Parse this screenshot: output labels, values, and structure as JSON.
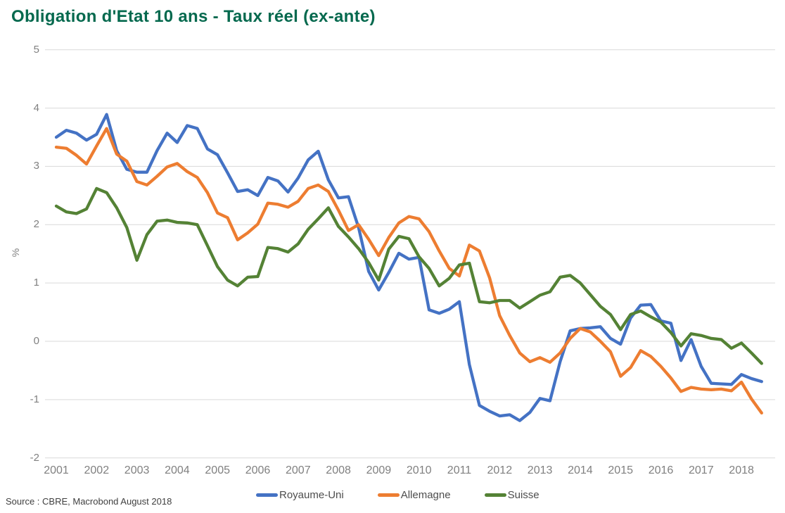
{
  "title": "Obligation d'Etat 10 ans - Taux réel (ex-ante)",
  "source": "Source : CBRE, Macrobond August 2018",
  "colors": {
    "title": "#05694e",
    "axis_text": "#808080",
    "gridline": "#d9d9d9",
    "background": "#ffffff"
  },
  "chart_data": {
    "type": "line",
    "title": "Obligation d'Etat 10 ans - Taux réel (ex-ante)",
    "xlabel": "",
    "ylabel": "%",
    "ylim": [
      -2,
      5
    ],
    "yticks": [
      5,
      4,
      3,
      2,
      1,
      0,
      -1,
      -2
    ],
    "grid": "horizontal",
    "legend_position": "bottom",
    "frequency": "quarterly",
    "x_start": "2001-Q1",
    "x_end": "2018-Q3",
    "x_tick_labels": [
      "2001",
      "2002",
      "2003",
      "2004",
      "2005",
      "2006",
      "2007",
      "2008",
      "2009",
      "2010",
      "2011",
      "2012",
      "2013",
      "2014",
      "2015",
      "2016",
      "2017",
      "2018"
    ],
    "series": [
      {
        "name": "Royaume-Uni",
        "color": "#4472C4",
        "values": [
          3.5,
          3.62,
          3.57,
          3.45,
          3.55,
          3.89,
          3.27,
          2.95,
          2.9,
          2.9,
          3.27,
          3.57,
          3.41,
          3.7,
          3.65,
          3.3,
          3.2,
          2.89,
          2.57,
          2.6,
          2.5,
          2.81,
          2.75,
          2.56,
          2.8,
          3.11,
          3.26,
          2.77,
          2.46,
          2.48,
          1.95,
          1.2,
          0.88,
          1.18,
          1.51,
          1.41,
          1.44,
          0.54,
          0.48,
          0.55,
          0.68,
          -0.4,
          -1.1,
          -1.2,
          -1.28,
          -1.26,
          -1.36,
          -1.22,
          -0.98,
          -1.02,
          -0.35,
          0.18,
          0.22,
          0.23,
          0.25,
          0.05,
          -0.05,
          0.4,
          0.62,
          0.63,
          0.35,
          0.31,
          -0.33,
          0.03,
          -0.43,
          -0.72,
          -0.73,
          -0.74,
          -0.57,
          -0.64,
          -0.69
        ]
      },
      {
        "name": "Allemagne",
        "color": "#ED7D31",
        "values": [
          3.33,
          3.31,
          3.19,
          3.04,
          3.35,
          3.65,
          3.21,
          3.09,
          2.74,
          2.68,
          2.83,
          2.99,
          3.05,
          2.91,
          2.81,
          2.55,
          2.2,
          2.12,
          1.74,
          1.86,
          2.01,
          2.37,
          2.35,
          2.3,
          2.4,
          2.62,
          2.68,
          2.57,
          2.25,
          1.9,
          2.0,
          1.75,
          1.47,
          1.78,
          2.03,
          2.14,
          2.1,
          1.88,
          1.55,
          1.25,
          1.12,
          1.65,
          1.55,
          1.09,
          0.44,
          0.1,
          -0.2,
          -0.35,
          -0.28,
          -0.36,
          -0.2,
          0.05,
          0.22,
          0.16,
          0.0,
          -0.18,
          -0.6,
          -0.45,
          -0.16,
          -0.26,
          -0.43,
          -0.63,
          -0.86,
          -0.79,
          -0.82,
          -0.83,
          -0.82,
          -0.85,
          -0.7,
          -0.99,
          -1.23
        ]
      },
      {
        "name": "Suisse",
        "color": "#548235",
        "values": [
          2.32,
          2.22,
          2.19,
          2.27,
          2.62,
          2.55,
          2.29,
          1.95,
          1.39,
          1.83,
          2.06,
          2.08,
          2.04,
          2.03,
          2.0,
          1.64,
          1.28,
          1.05,
          0.95,
          1.1,
          1.11,
          1.61,
          1.59,
          1.53,
          1.67,
          1.92,
          2.1,
          2.29,
          1.97,
          1.79,
          1.59,
          1.35,
          1.05,
          1.58,
          1.8,
          1.76,
          1.45,
          1.25,
          0.95,
          1.08,
          1.31,
          1.34,
          0.68,
          0.66,
          0.7,
          0.7,
          0.57,
          0.68,
          0.79,
          0.85,
          1.1,
          1.13,
          1.0,
          0.8,
          0.6,
          0.46,
          0.2,
          0.46,
          0.52,
          0.42,
          0.33,
          0.15,
          -0.08,
          0.13,
          0.1,
          0.05,
          0.03,
          -0.12,
          -0.03,
          -0.2,
          -0.38
        ]
      }
    ]
  }
}
